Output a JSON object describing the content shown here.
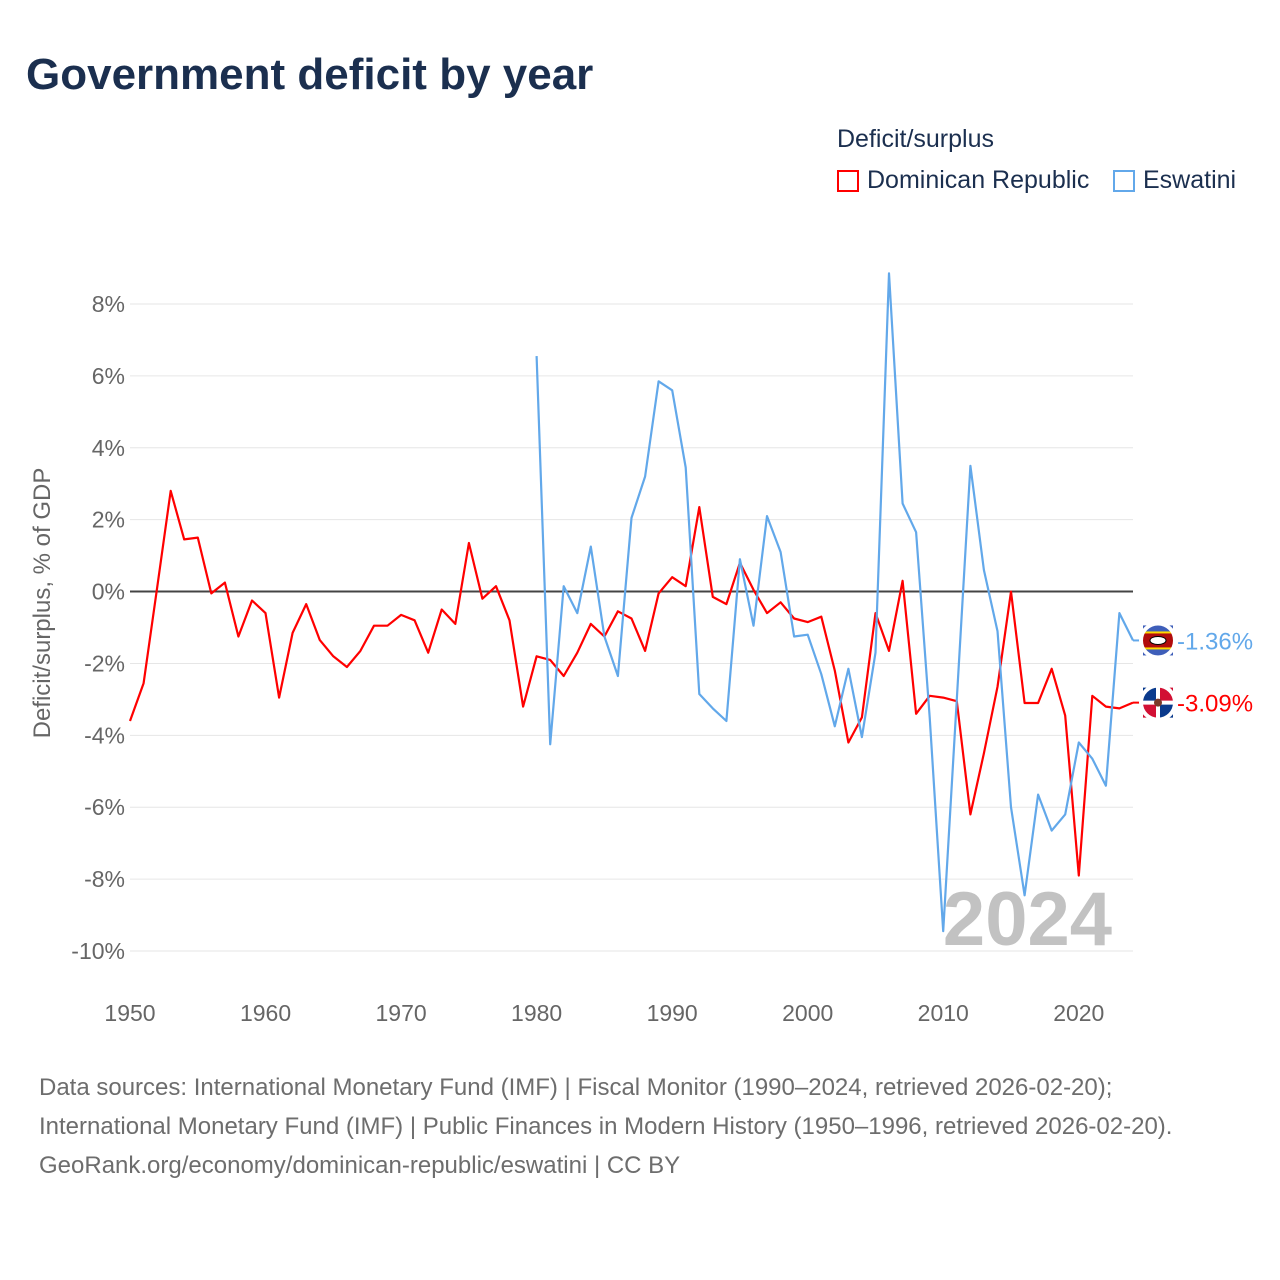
{
  "chart_data": {
    "type": "line",
    "title": "Government deficit by year",
    "ylabel": "Deficit/surplus, % of GDP",
    "xlabel": "",
    "ylim": [
      -10,
      8
    ],
    "xlim": [
      1950,
      2024
    ],
    "grid": true,
    "yticks": [
      "8%",
      "6%",
      "4%",
      "2%",
      "0%",
      "-2%",
      "-4%",
      "-6%",
      "-8%",
      "-10%"
    ],
    "ytick_values": [
      8,
      6,
      4,
      2,
      0,
      -2,
      -4,
      -6,
      -8,
      -10
    ],
    "xticks": [
      "1950",
      "1960",
      "1970",
      "1980",
      "1990",
      "2000",
      "2010",
      "2020"
    ],
    "xtick_values": [
      1950,
      1960,
      1970,
      1980,
      1990,
      2000,
      2010,
      2020
    ],
    "legend_title": "Deficit/surplus",
    "legend_position": "top-right",
    "year_watermark": "2024",
    "series": [
      {
        "name": "Dominican Republic",
        "color": "#ff0000",
        "flag": "dominican-republic-flag-icon",
        "end_label": "-3.09%",
        "start_year": 1950,
        "values": [
          -3.6,
          -2.55,
          0.1,
          2.8,
          1.45,
          1.5,
          -0.05,
          0.25,
          -1.25,
          -0.25,
          -0.6,
          -2.95,
          -1.15,
          -0.35,
          -1.35,
          -1.8,
          -2.1,
          -1.65,
          -0.95,
          -0.95,
          -0.65,
          -0.8,
          -1.7,
          -0.5,
          -0.9,
          1.35,
          -0.2,
          0.15,
          -0.8,
          -3.2,
          -1.8,
          -1.9,
          -2.35,
          -1.7,
          -0.9,
          -1.25,
          -0.55,
          -0.75,
          -1.65,
          -0.05,
          0.4,
          0.15,
          2.35,
          -0.15,
          -0.35,
          0.8,
          0.05,
          -0.6,
          -0.3,
          -0.75,
          -0.85,
          -0.7,
          -2.2,
          -4.2,
          -3.5,
          -0.6,
          -1.65,
          0.3,
          -3.4,
          -2.9,
          -2.95,
          -3.05,
          -6.2,
          -4.5,
          -2.65,
          0.0,
          -3.1,
          -3.1,
          -2.15,
          -3.45,
          -7.9,
          -2.9,
          -3.2,
          -3.25,
          -3.09
        ]
      },
      {
        "name": "Eswatini",
        "color": "#62a8ea",
        "flag": "eswatini-flag-icon",
        "end_label": "-1.36%",
        "start_year": 1980,
        "values": [
          6.55,
          -4.25,
          0.15,
          -0.6,
          1.25,
          -1.25,
          -2.35,
          2.05,
          3.2,
          5.85,
          5.6,
          3.45,
          -2.85,
          -3.25,
          -3.6,
          0.9,
          -0.95,
          2.1,
          1.1,
          -1.25,
          -1.2,
          -2.3,
          -3.75,
          -2.15,
          -4.05,
          -1.7,
          8.85,
          2.45,
          1.65,
          -3.5,
          -9.45,
          -3.0,
          3.5,
          0.6,
          -1.1,
          -6.0,
          -8.45,
          -5.65,
          -6.65,
          -6.2,
          -4.2,
          -4.65,
          -5.4,
          -0.6,
          -1.36
        ]
      }
    ]
  },
  "footer": {
    "sources": "Data sources: International Monetary Fund (IMF) | Fiscal Monitor (1990–2024, retrieved 2026-02-20); International Monetary Fund (IMF) | Public Finances in Modern History (1950–1996, retrieved 2026-02-20).",
    "credit": "GeoRank.org/economy/dominican-republic/eswatini | CC BY"
  }
}
